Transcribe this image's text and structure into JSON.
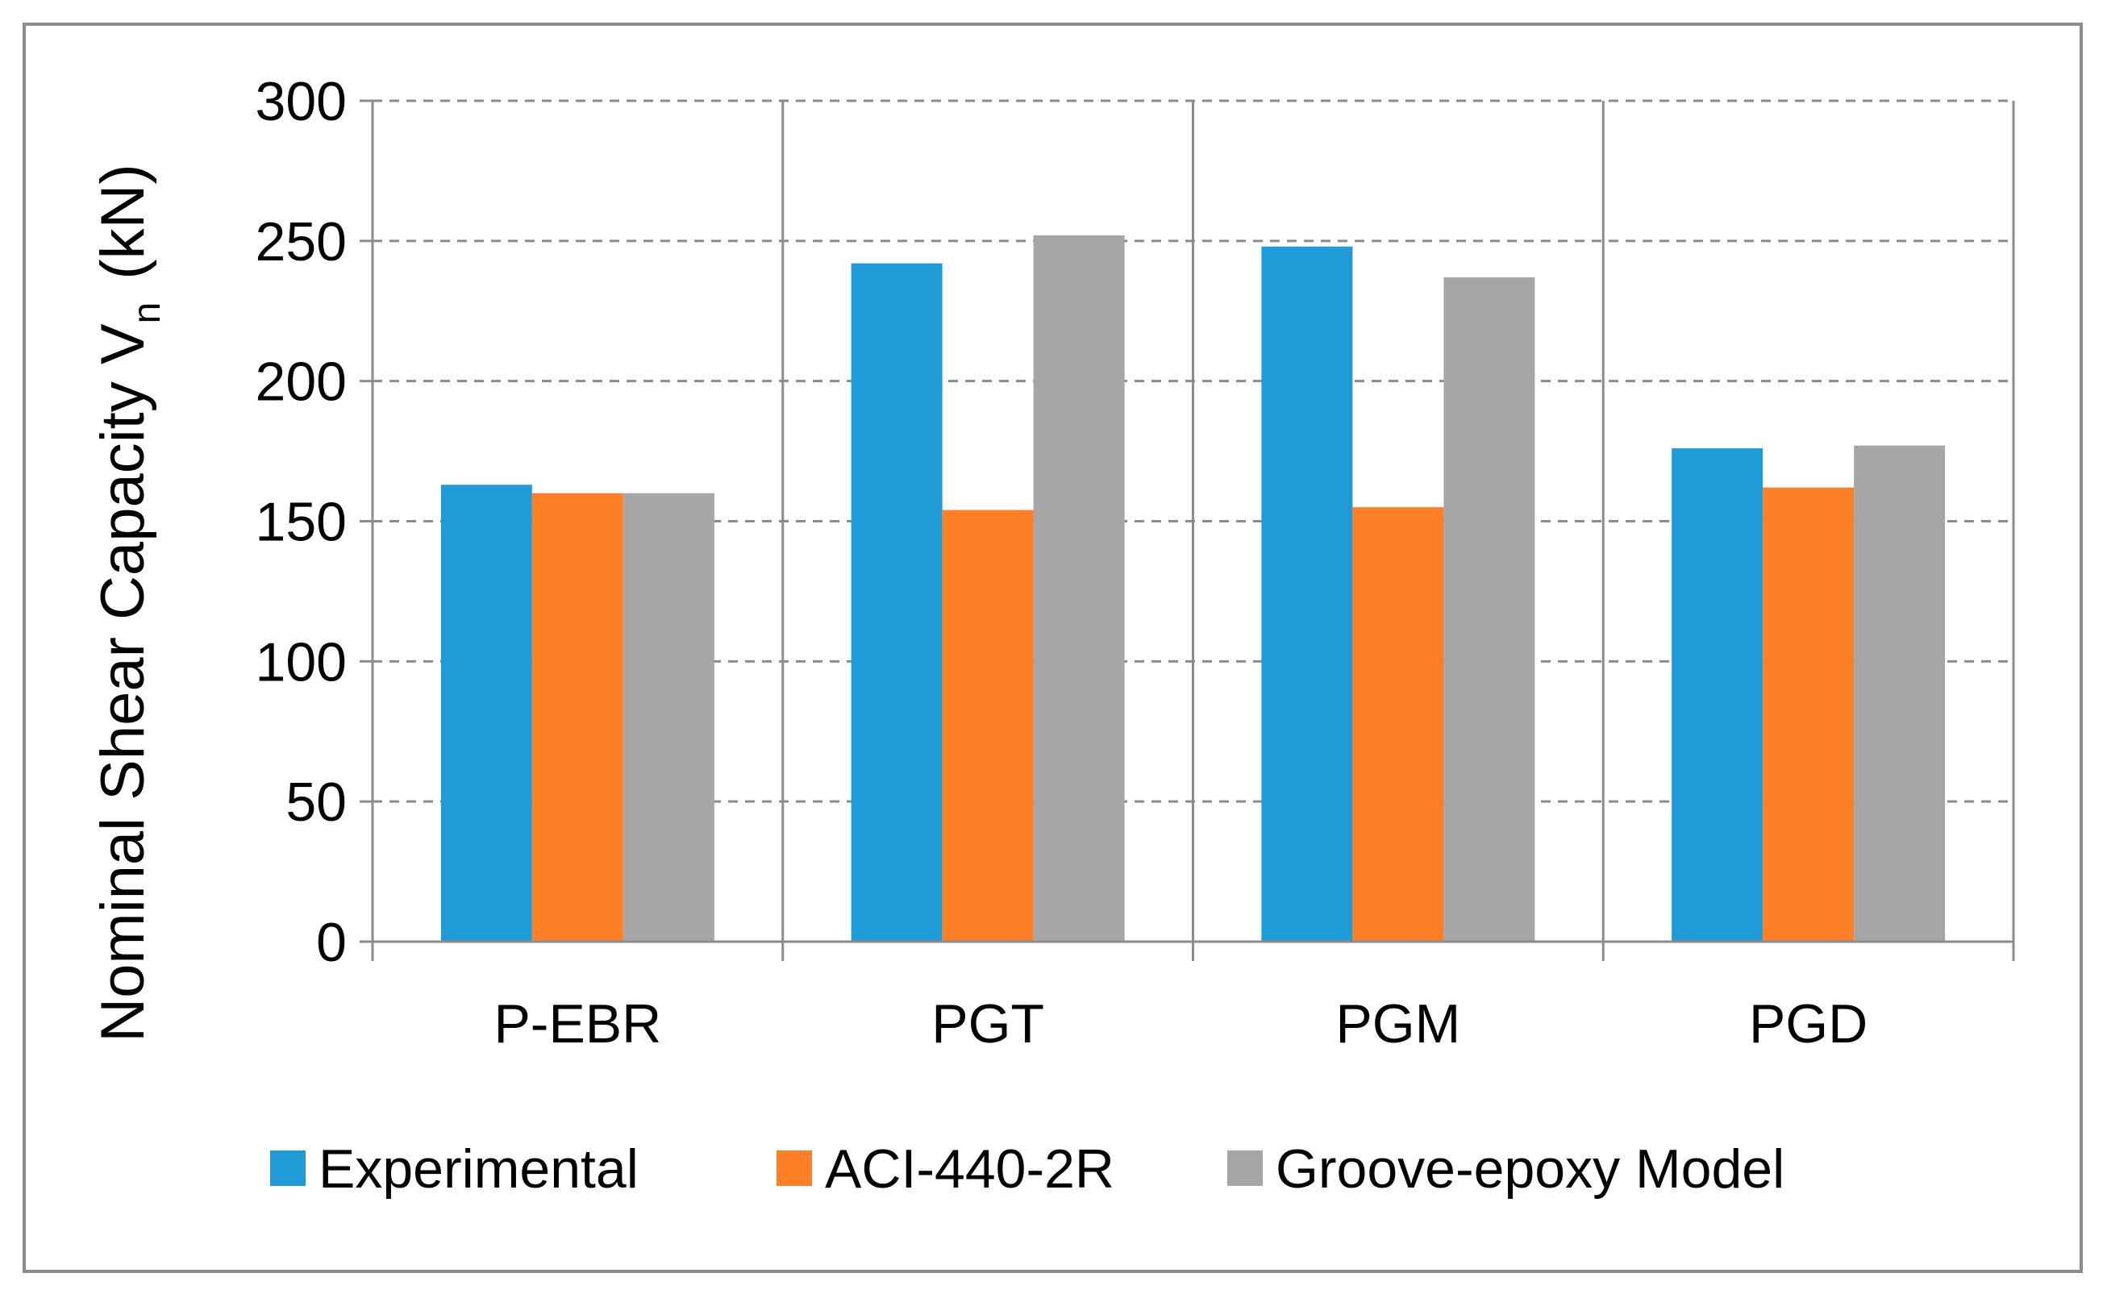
{
  "chart_data": {
    "type": "bar",
    "title": "",
    "xlabel": "",
    "ylabel": "Nominal Shear Capacity V",
    "ylabel_subscript": "n",
    "ylabel_unit": "(kN)",
    "ylim": [
      0,
      300
    ],
    "yticks": [
      "0",
      "50",
      "100",
      "150",
      "200",
      "250",
      "300"
    ],
    "grid": "dashed horizontal",
    "legend_position": "bottom",
    "categories": [
      "P-EBR",
      "PGT",
      "PGM",
      "PGD"
    ],
    "series": [
      {
        "name": "Experimental",
        "color": "#1F9CD8",
        "values": [
          163,
          242,
          248,
          176
        ]
      },
      {
        "name": "ACI-440-2R",
        "color": "#FF7F27",
        "values": [
          160,
          154,
          155,
          162
        ]
      },
      {
        "name": "Groove-epoxy Model",
        "color": "#A6A6A6",
        "values": [
          160,
          252,
          237,
          177
        ]
      }
    ]
  },
  "colors": {
    "frame": "#8C8C8C",
    "grid": "#8C8C8C",
    "axis": "#8C8C8C"
  }
}
